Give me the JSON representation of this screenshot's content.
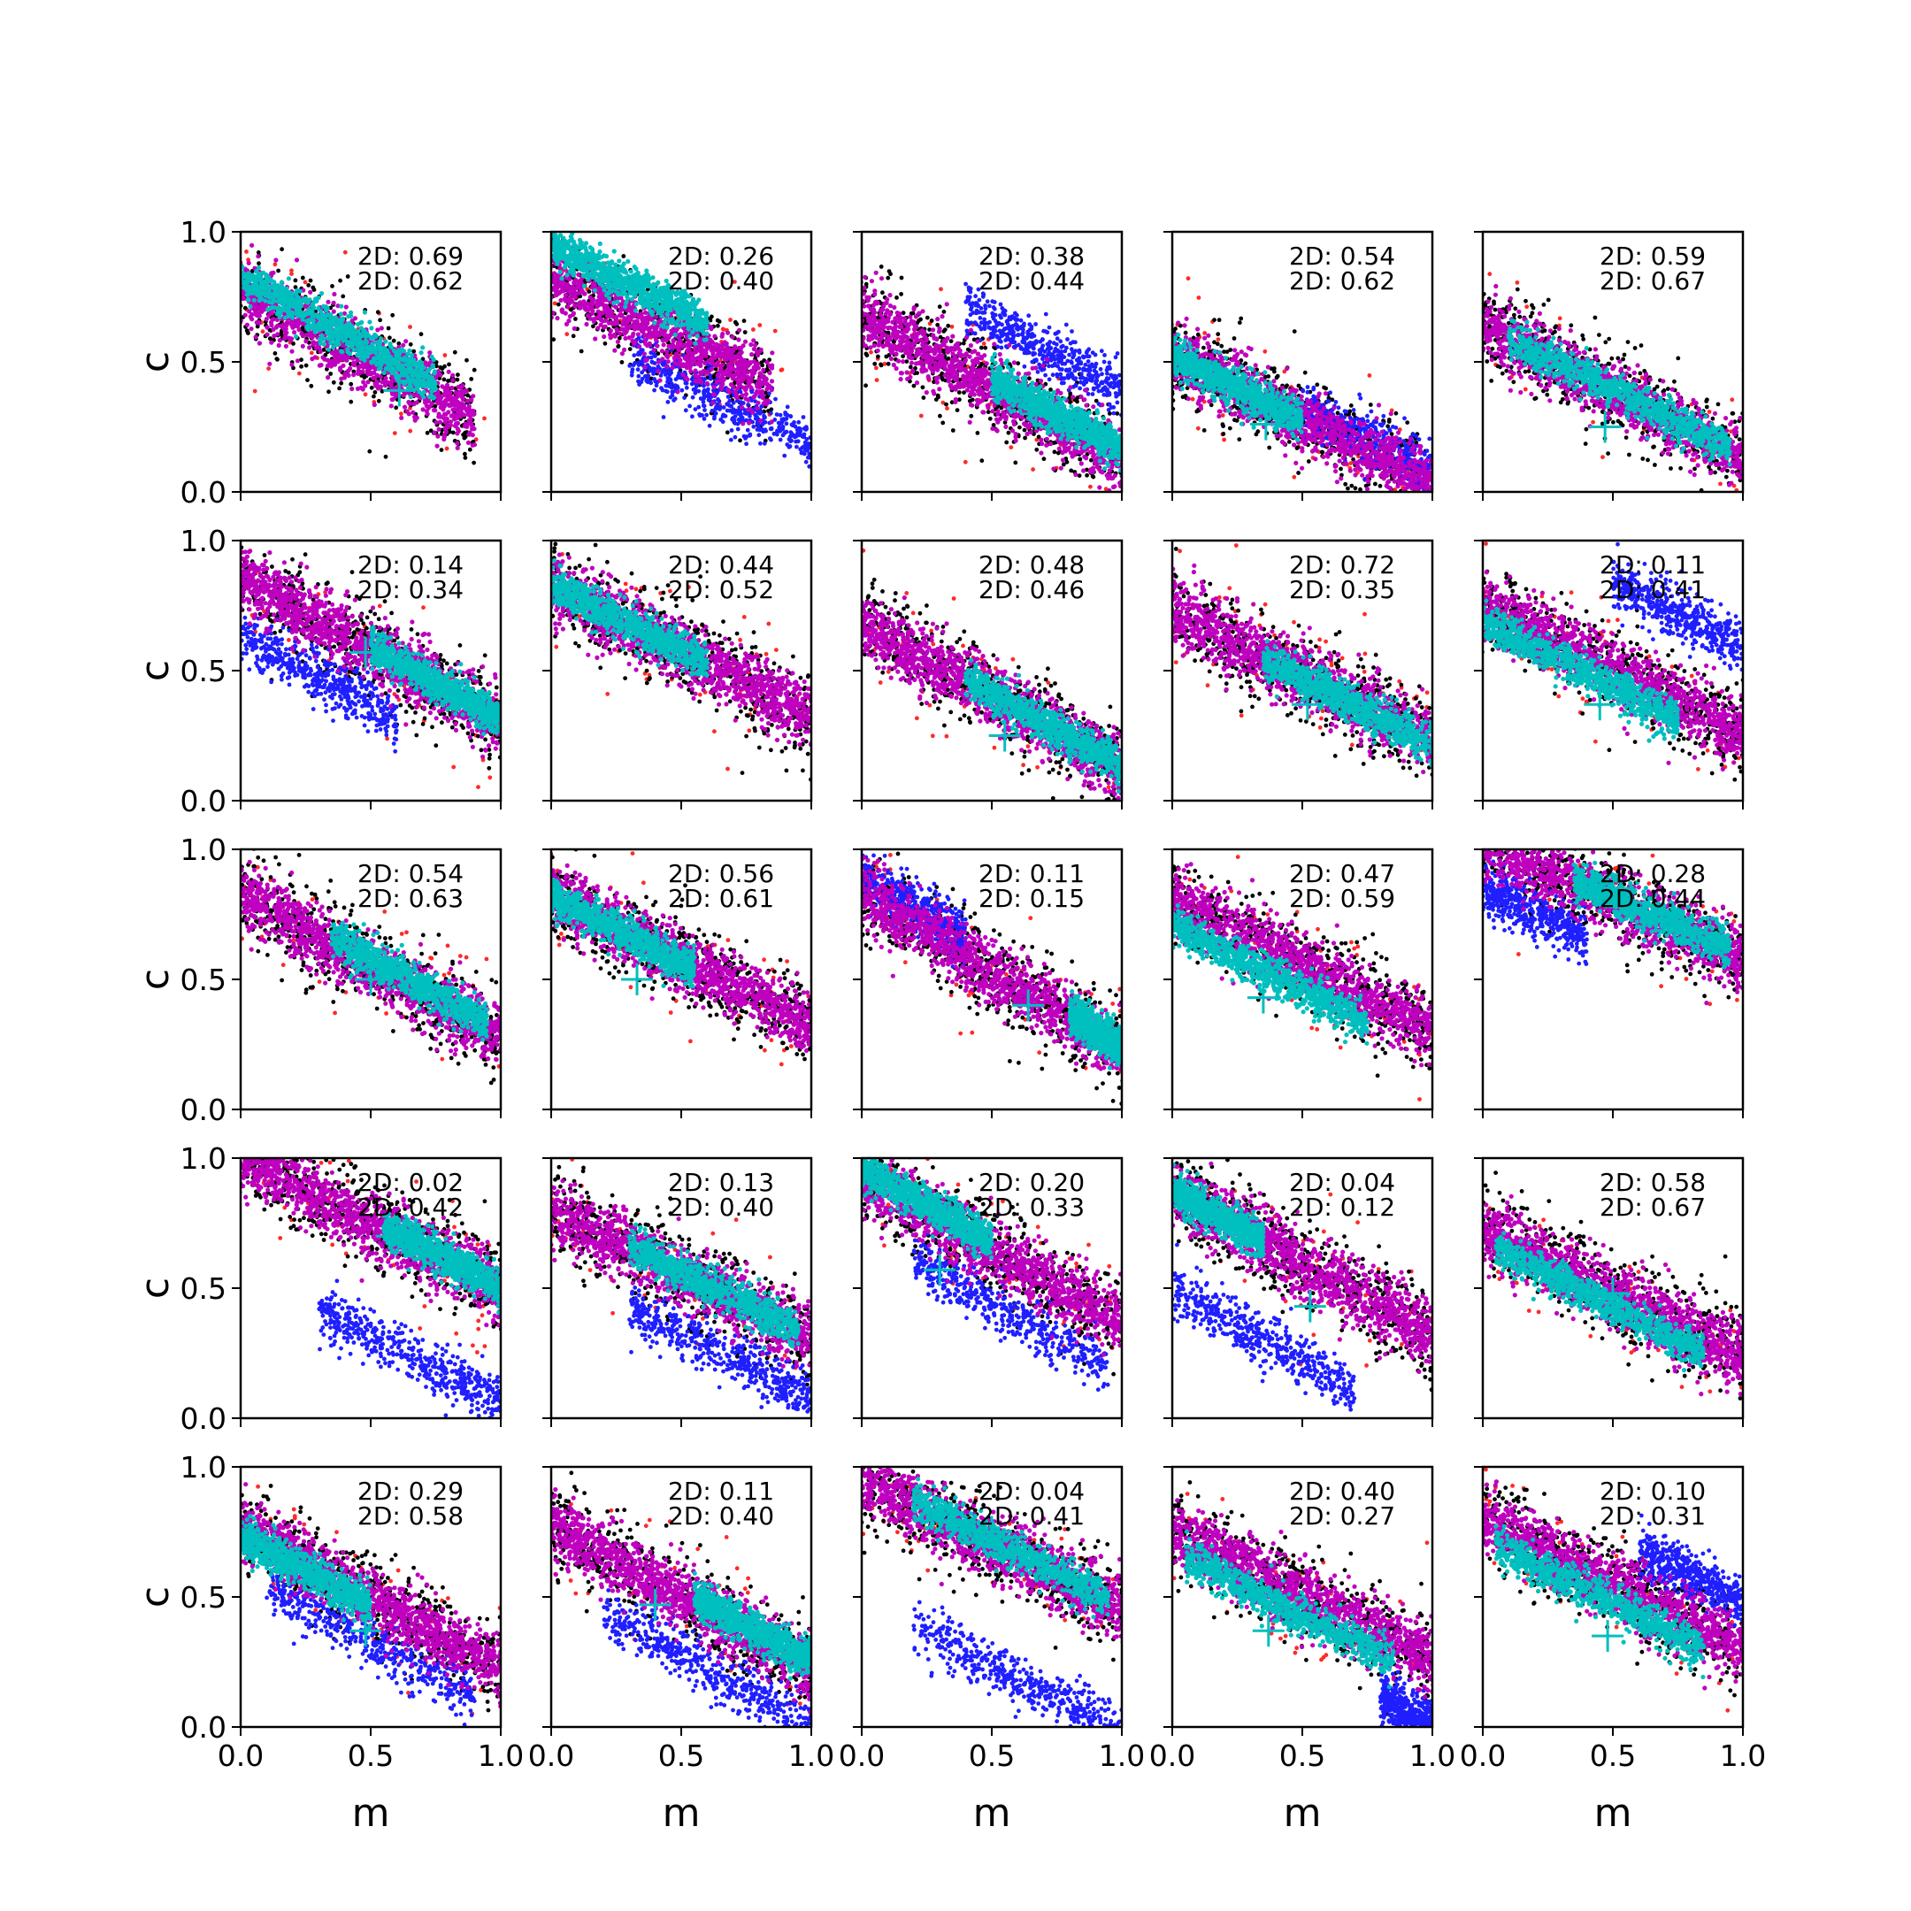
{
  "chart_data": {
    "type": "scatter",
    "layout": {
      "rows": 5,
      "cols": 5
    },
    "shared_axes": {
      "xlabel": "m",
      "ylabel": "c",
      "xlim": [
        0.0,
        1.0
      ],
      "ylim": [
        0.0,
        1.0
      ],
      "xticks": [
        "0.0",
        "0.5",
        "1.0"
      ],
      "yticks": [
        "0.0",
        "0.5",
        "1.0"
      ]
    },
    "series_colors": {
      "red": "#ff2a2a",
      "black": "#000000",
      "blue": "#1f1fff",
      "magenta": "#bf00bf",
      "cyan": "#00bfbf",
      "marker": "#00bfbf"
    },
    "grid": false,
    "panels": [
      {
        "annotations": [
          "2D: 0.69",
          "2D: 0.62"
        ],
        "marker": [
          0.61,
          0.39
        ],
        "center": [
          0.3,
          0.62
        ],
        "slope": -0.55,
        "cyan": {
          "m": [
            0.0,
            0.75
          ],
          "c": 0.62
        },
        "blue": null
      },
      {
        "annotations": [
          "2D: 0.26",
          "2D: 0.40"
        ],
        "marker": [
          0.5,
          0.72
        ],
        "center": [
          0.25,
          0.7
        ],
        "slope": -0.5,
        "cyan": {
          "m": [
            0.0,
            0.6
          ],
          "c": 0.8
        },
        "blue": {
          "m": [
            0.3,
            1.0
          ],
          "c": 0.35
        }
      },
      {
        "annotations": [
          "2D: 0.38",
          "2D: 0.44"
        ],
        "marker": [
          0.67,
          0.3
        ],
        "center": [
          0.5,
          0.4
        ],
        "slope": -0.55,
        "cyan": {
          "m": [
            0.5,
            1.0
          ],
          "c": 0.3
        },
        "blue": {
          "m": [
            0.4,
            1.0
          ],
          "c": 0.55
        }
      },
      {
        "annotations": [
          "2D: 0.54",
          "2D: 0.62"
        ],
        "marker": [
          0.36,
          0.26
        ],
        "center": [
          0.45,
          0.3
        ],
        "slope": -0.5,
        "cyan": {
          "m": [
            0.0,
            0.5
          ],
          "c": 0.4
        },
        "blue": {
          "m": [
            0.5,
            1.0
          ],
          "c": 0.2
        }
      },
      {
        "annotations": [
          "2D: 0.59",
          "2D: 0.67"
        ],
        "marker": [
          0.47,
          0.25
        ],
        "center": [
          0.5,
          0.38
        ],
        "slope": -0.5,
        "cyan": {
          "m": [
            0.1,
            0.95
          ],
          "c": 0.38
        },
        "blue": null
      },
      {
        "annotations": [
          "2D: 0.14",
          "2D: 0.34"
        ],
        "marker": [
          0.48,
          0.57
        ],
        "center": [
          0.5,
          0.58
        ],
        "slope": -0.55,
        "cyan": {
          "m": [
            0.5,
            1.0
          ],
          "c": 0.45
        },
        "blue": {
          "m": [
            0.0,
            0.6
          ],
          "c": 0.48
        }
      },
      {
        "annotations": [
          "2D: 0.44",
          "2D: 0.52"
        ],
        "marker": [
          0.45,
          0.6
        ],
        "center": [
          0.45,
          0.6
        ],
        "slope": -0.5,
        "cyan": {
          "m": [
            0.0,
            0.6
          ],
          "c": 0.68
        },
        "blue": null
      },
      {
        "annotations": [
          "2D: 0.48",
          "2D: 0.46"
        ],
        "marker": [
          0.55,
          0.25
        ],
        "center": [
          0.5,
          0.4
        ],
        "slope": -0.55,
        "cyan": {
          "m": [
            0.4,
            1.0
          ],
          "c": 0.3
        },
        "blue": null
      },
      {
        "annotations": [
          "2D: 0.72",
          "2D: 0.35"
        ],
        "marker": [
          0.52,
          0.37
        ],
        "center": [
          0.5,
          0.48
        ],
        "slope": -0.5,
        "cyan": {
          "m": [
            0.35,
            1.0
          ],
          "c": 0.38
        },
        "blue": null
      },
      {
        "annotations": [
          "2D: 0.11",
          "2D: 0.41"
        ],
        "marker": [
          0.45,
          0.37
        ],
        "center": [
          0.5,
          0.5
        ],
        "slope": -0.5,
        "cyan": {
          "m": [
            0.0,
            0.75
          ],
          "c": 0.5
        },
        "blue": {
          "m": [
            0.5,
            1.0
          ],
          "c": 0.72
        }
      },
      {
        "annotations": [
          "2D: 0.54",
          "2D: 0.63"
        ],
        "marker": [
          0.5,
          0.5
        ],
        "center": [
          0.5,
          0.55
        ],
        "slope": -0.55,
        "cyan": {
          "m": [
            0.35,
            0.95
          ],
          "c": 0.5
        },
        "blue": null
      },
      {
        "annotations": [
          "2D: 0.56",
          "2D: 0.61"
        ],
        "marker": [
          0.33,
          0.5
        ],
        "center": [
          0.45,
          0.6
        ],
        "slope": -0.5,
        "cyan": {
          "m": [
            0.0,
            0.55
          ],
          "c": 0.68
        },
        "blue": null
      },
      {
        "annotations": [
          "2D: 0.11",
          "2D: 0.15"
        ],
        "marker": [
          0.64,
          0.4
        ],
        "center": [
          0.55,
          0.5
        ],
        "slope": -0.6,
        "cyan": {
          "m": [
            0.8,
            1.0
          ],
          "c": 0.3
        },
        "blue": {
          "m": [
            0.0,
            0.4
          ],
          "c": 0.78
        }
      },
      {
        "annotations": [
          "2D: 0.47",
          "2D: 0.59"
        ],
        "marker": [
          0.35,
          0.43
        ],
        "center": [
          0.5,
          0.55
        ],
        "slope": -0.5,
        "cyan": {
          "m": [
            0.0,
            0.75
          ],
          "c": 0.52
        },
        "blue": null
      },
      {
        "annotations": [
          "2D: 0.28",
          "2D: 0.44"
        ],
        "marker": [
          0.5,
          0.85
        ],
        "center": [
          0.5,
          0.8
        ],
        "slope": -0.45,
        "cyan": {
          "m": [
            0.35,
            0.95
          ],
          "c": 0.75
        },
        "blue": {
          "m": [
            0.0,
            0.4
          ],
          "c": 0.75
        }
      },
      {
        "annotations": [
          "2D: 0.02",
          "2D: 0.42"
        ],
        "marker": [
          0.58,
          0.7
        ],
        "center": [
          0.5,
          0.75
        ],
        "slope": -0.5,
        "cyan": {
          "m": [
            0.55,
            1.0
          ],
          "c": 0.62
        },
        "blue": {
          "m": [
            0.3,
            1.0
          ],
          "c": 0.24
        }
      },
      {
        "annotations": [
          "2D: 0.13",
          "2D: 0.40"
        ],
        "marker": [
          0.5,
          0.6
        ],
        "center": [
          0.5,
          0.55
        ],
        "slope": -0.5,
        "cyan": {
          "m": [
            0.3,
            0.95
          ],
          "c": 0.5
        },
        "blue": {
          "m": [
            0.3,
            1.0
          ],
          "c": 0.25
        }
      },
      {
        "annotations": [
          "2D: 0.20",
          "2D: 0.33"
        ],
        "marker": [
          0.3,
          0.57
        ],
        "center": [
          0.4,
          0.7
        ],
        "slope": -0.55,
        "cyan": {
          "m": [
            0.0,
            0.5
          ],
          "c": 0.82
        },
        "blue": {
          "m": [
            0.2,
            0.95
          ],
          "c": 0.4
        }
      },
      {
        "annotations": [
          "2D: 0.04",
          "2D: 0.12"
        ],
        "marker": [
          0.53,
          0.43
        ],
        "center": [
          0.4,
          0.65
        ],
        "slope": -0.55,
        "cyan": {
          "m": [
            0.0,
            0.35
          ],
          "c": 0.78
        },
        "blue": {
          "m": [
            0.0,
            0.7
          ],
          "c": 0.3
        }
      },
      {
        "annotations": [
          "2D: 0.58",
          "2D: 0.67"
        ],
        "marker": [
          0.5,
          0.48
        ],
        "center": [
          0.5,
          0.48
        ],
        "slope": -0.5,
        "cyan": {
          "m": [
            0.05,
            0.85
          ],
          "c": 0.45
        },
        "blue": null
      },
      {
        "annotations": [
          "2D: 0.29",
          "2D: 0.58"
        ],
        "marker": [
          0.48,
          0.37
        ],
        "center": [
          0.4,
          0.55
        ],
        "slope": -0.55,
        "cyan": {
          "m": [
            0.0,
            0.5
          ],
          "c": 0.6
        },
        "blue": {
          "m": [
            0.1,
            0.9
          ],
          "c": 0.33
        }
      },
      {
        "annotations": [
          "2D: 0.11",
          "2D: 0.40"
        ],
        "marker": [
          0.4,
          0.47
        ],
        "center": [
          0.5,
          0.5
        ],
        "slope": -0.55,
        "cyan": {
          "m": [
            0.55,
            1.0
          ],
          "c": 0.38
        },
        "blue": {
          "m": [
            0.2,
            1.0
          ],
          "c": 0.22
        }
      },
      {
        "annotations": [
          "2D: 0.04",
          "2D: 0.41"
        ],
        "marker": [
          0.5,
          0.75
        ],
        "center": [
          0.5,
          0.7
        ],
        "slope": -0.5,
        "cyan": {
          "m": [
            0.2,
            0.95
          ],
          "c": 0.68
        },
        "blue": {
          "m": [
            0.2,
            1.0
          ],
          "c": 0.18
        }
      },
      {
        "annotations": [
          "2D: 0.40",
          "2D: 0.27"
        ],
        "marker": [
          0.37,
          0.37
        ],
        "center": [
          0.5,
          0.5
        ],
        "slope": -0.5,
        "cyan": {
          "m": [
            0.05,
            0.85
          ],
          "c": 0.45
        },
        "blue": {
          "m": [
            0.8,
            1.0
          ],
          "c": 0.05
        }
      },
      {
        "annotations": [
          "2D: 0.10",
          "2D: 0.31"
        ],
        "marker": [
          0.48,
          0.35
        ],
        "center": [
          0.5,
          0.55
        ],
        "slope": -0.5,
        "cyan": {
          "m": [
            0.05,
            0.85
          ],
          "c": 0.5
        },
        "blue": {
          "m": [
            0.6,
            1.0
          ],
          "c": 0.58
        }
      }
    ]
  }
}
